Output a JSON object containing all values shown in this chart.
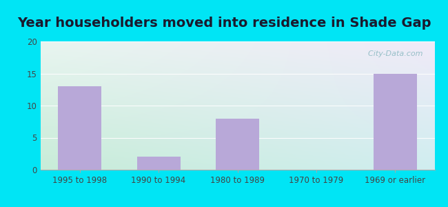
{
  "title": "Year householders moved into residence in Shade Gap",
  "categories": [
    "1995 to 1998",
    "1990 to 1994",
    "1980 to 1989",
    "1970 to 1979",
    "1969 or earlier"
  ],
  "values": [
    13,
    2,
    8,
    0,
    15
  ],
  "bar_color": "#b8a8d8",
  "ylim": [
    0,
    20
  ],
  "yticks": [
    0,
    5,
    10,
    15,
    20
  ],
  "bg_outer": "#00e5f5",
  "bg_plot_topleft": "#e8f5f0",
  "bg_plot_bottomleft": "#c8ecd8",
  "bg_plot_topright": "#f0eaf8",
  "bg_plot_bottomright": "#d8e8f0",
  "title_fontsize": 14,
  "tick_fontsize": 8.5,
  "watermark": "  City-Data.com"
}
